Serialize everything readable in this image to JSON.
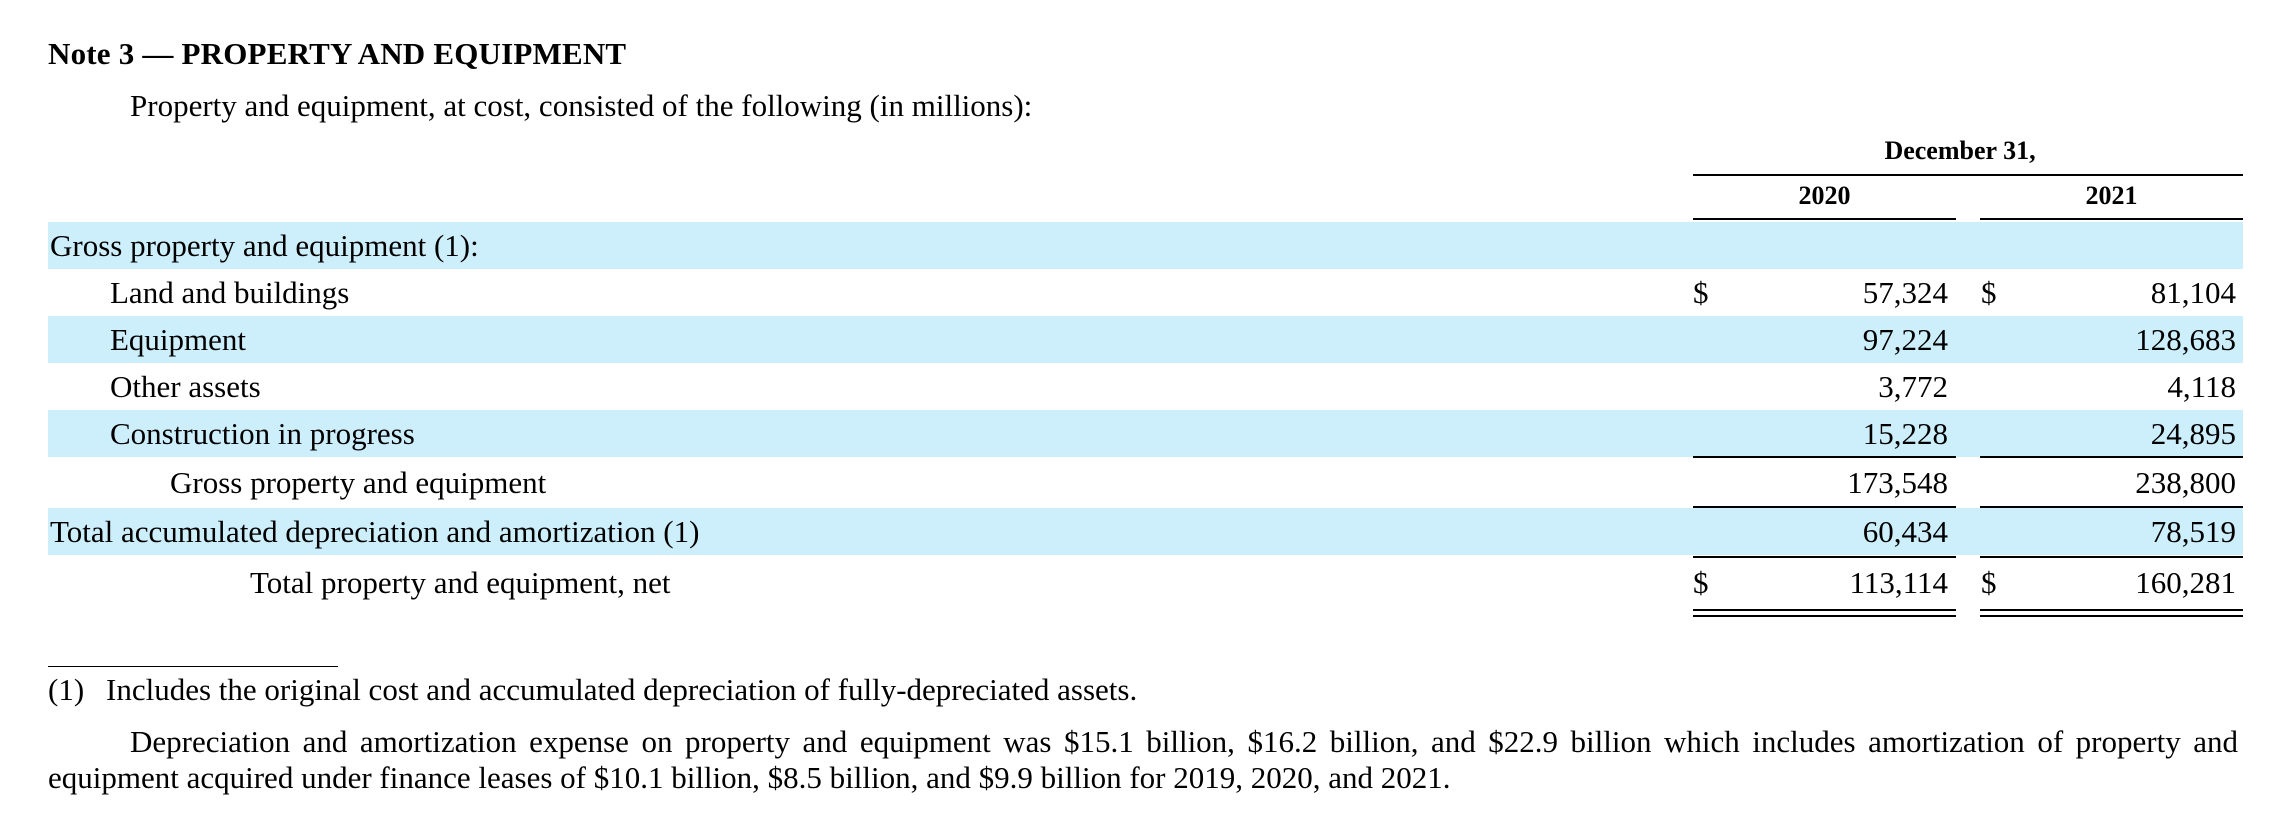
{
  "note": {
    "title": "Note 3 — PROPERTY AND EQUIPMENT",
    "intro": "Property and equipment, at cost, consisted of the following (in millions):"
  },
  "table": {
    "period_header": "December 31,",
    "years": [
      "2020",
      "2021"
    ],
    "rows": [
      {
        "label": "Gross property and equipment (1):",
        "v2020": "",
        "v2021": "",
        "dollar2020": "",
        "dollar2021": ""
      },
      {
        "label": "Land and buildings",
        "v2020": "57,324",
        "v2021": "81,104",
        "dollar2020": "$",
        "dollar2021": "$"
      },
      {
        "label": "Equipment",
        "v2020": "97,224",
        "v2021": "128,683",
        "dollar2020": "",
        "dollar2021": ""
      },
      {
        "label": "Other assets",
        "v2020": "3,772",
        "v2021": "4,118",
        "dollar2020": "",
        "dollar2021": ""
      },
      {
        "label": "Construction in progress",
        "v2020": "15,228",
        "v2021": "24,895",
        "dollar2020": "",
        "dollar2021": ""
      },
      {
        "label": "Gross property and equipment",
        "v2020": "173,548",
        "v2021": "238,800",
        "dollar2020": "",
        "dollar2021": ""
      },
      {
        "label": "Total accumulated depreciation and amortization (1)",
        "v2020": "60,434",
        "v2021": "78,519",
        "dollar2020": "",
        "dollar2021": ""
      },
      {
        "label": "Total property and equipment, net",
        "v2020": "113,114",
        "v2021": "160,281",
        "dollar2020": "$",
        "dollar2021": "$"
      }
    ]
  },
  "footnote": {
    "marker": "(1)",
    "text": "Includes the original cost and accumulated depreciation of fully-depreciated assets."
  },
  "paragraph": "Depreciation and amortization expense on property and equipment was $15.1 billion, $16.2 billion, and $22.9 billion which includes amortization of property and equipment acquired under finance leases of $10.1 billion, $8.5 billion, and $9.9 billion for 2019, 2020, and 2021."
}
